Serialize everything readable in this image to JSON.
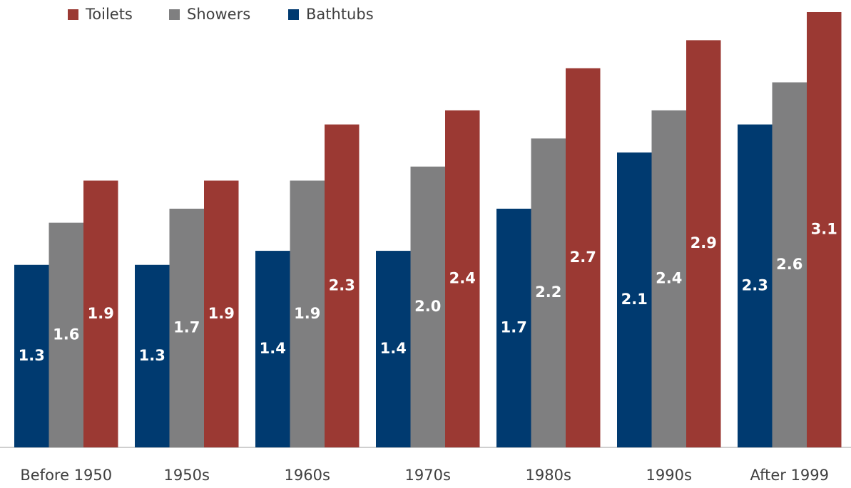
{
  "chart_data": {
    "type": "bar",
    "categories": [
      "Before 1950",
      "1950s",
      "1960s",
      "1970s",
      "1980s",
      "1990s",
      "After 1999"
    ],
    "series": [
      {
        "name": "Toilets",
        "color": "#9b3933",
        "values": [
          1.9,
          1.9,
          2.3,
          2.4,
          2.7,
          2.9,
          3.1
        ],
        "value_labels": [
          "1.9",
          "1.9",
          "2.3",
          "2.4",
          "2.7",
          "2.9",
          "3.1"
        ]
      },
      {
        "name": "Showers",
        "color": "#7f7f80",
        "values": [
          1.6,
          1.7,
          1.9,
          2.0,
          2.2,
          2.4,
          2.6
        ],
        "value_labels": [
          "1.6",
          "1.7",
          "1.9",
          "2.0",
          "2.2",
          "2.4",
          "2.6"
        ]
      },
      {
        "name": "Bathtubs",
        "color": "#003a70",
        "values": [
          1.3,
          1.3,
          1.4,
          1.4,
          1.7,
          2.1,
          2.3
        ],
        "value_labels": [
          "1.3",
          "1.3",
          "1.4",
          "1.4",
          "1.7",
          "2.1",
          "2.3"
        ]
      }
    ],
    "legend": "top-left"
  }
}
